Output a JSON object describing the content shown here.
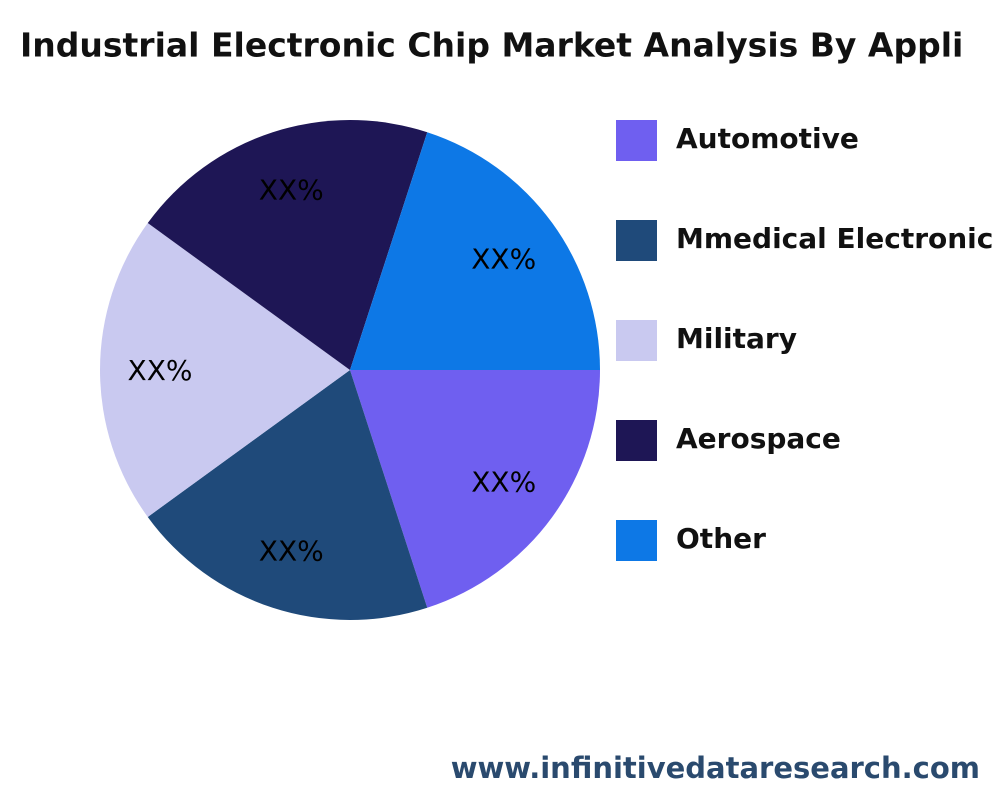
{
  "chart_data": {
    "type": "pie",
    "title": "Industrial Electronic Chip Market Analysis By Appli",
    "categories": [
      "Automotive",
      "Mmedical Electronic",
      "Military",
      "Aerospace",
      "Other"
    ],
    "values": [
      20,
      20,
      20,
      20,
      20
    ],
    "value_labels": [
      "XX%",
      "XX%",
      "XX%",
      "XX%",
      "XX%"
    ],
    "colors": [
      "#6f5ff0",
      "#1f4a7a",
      "#c9c9f0",
      "#1e1655",
      "#0d78e6"
    ],
    "legend": "right",
    "footer": "www.infinitivedataresearch.com"
  }
}
